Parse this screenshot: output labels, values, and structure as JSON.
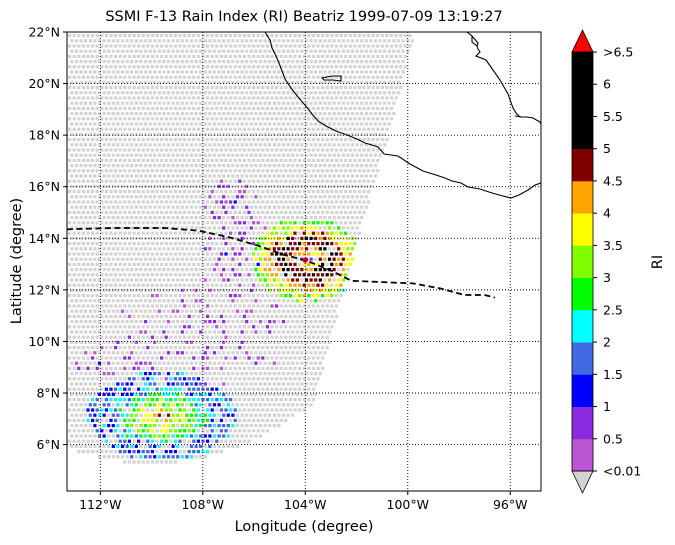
{
  "map": {
    "title": "SSMI F-13 Rain Index (RI) Beatriz 1999-07-09 13:19:27",
    "xlabel": "Longitude (degree)",
    "ylabel": "Latitude (degree)",
    "lon_range": [
      -113.3,
      -94.8
    ],
    "lat_range": [
      4.2,
      22.0
    ],
    "lon_ticks": [
      {
        "value": -112,
        "label": "112°W"
      },
      {
        "value": -108,
        "label": "108°W"
      },
      {
        "value": -104,
        "label": "104°W"
      },
      {
        "value": -100,
        "label": "100°W"
      },
      {
        "value": -96,
        "label": "96°W"
      }
    ],
    "lat_ticks": [
      {
        "value": 6,
        "label": "6°N"
      },
      {
        "value": 8,
        "label": "8°N"
      },
      {
        "value": 10,
        "label": "10°N"
      },
      {
        "value": 12,
        "label": "12°N"
      },
      {
        "value": 14,
        "label": "14°N"
      },
      {
        "value": 16,
        "label": "16°N"
      },
      {
        "value": 18,
        "label": "18°N"
      },
      {
        "value": 20,
        "label": "20°N"
      },
      {
        "value": 22,
        "label": "22°N"
      }
    ],
    "grid": "dotted",
    "swath_color": "#d3d3d3",
    "storm_track": [
      [
        -113.3,
        14.35
      ],
      [
        -111.5,
        14.4
      ],
      [
        -109.5,
        14.4
      ],
      [
        -108.2,
        14.3
      ],
      [
        -107.0,
        14.05
      ],
      [
        -105.8,
        13.7
      ],
      [
        -104.8,
        13.35
      ],
      [
        -104.0,
        13.15
      ],
      [
        -103.0,
        12.75
      ],
      [
        -102.2,
        12.35
      ],
      [
        -101.0,
        12.3
      ],
      [
        -99.8,
        12.25
      ],
      [
        -98.7,
        12.05
      ],
      [
        -97.8,
        11.8
      ],
      [
        -97.0,
        11.8
      ],
      [
        -96.6,
        11.7
      ]
    ],
    "storm_center": [
      -104.0,
      13.15
    ],
    "storm_center_color": "#cc0000"
  },
  "colorbar": {
    "label": "RI",
    "tick_labels": [
      "<0.01",
      "0.5",
      "1",
      "1.5",
      "2",
      "2.5",
      "3",
      "3.5",
      "4",
      "4.5",
      "5",
      "5.5",
      "6",
      ">6.5"
    ],
    "colors": [
      "#ba55d3",
      "#8a2be2",
      "#0000ff",
      "#4169e1",
      "#00ffff",
      "#00ff00",
      "#7fff00",
      "#ffff00",
      "#ffa500",
      "#800000",
      "#000000",
      "#000000",
      "#000000"
    ],
    "under_color": "#d3d3d3",
    "over_color": "#ff0000"
  }
}
